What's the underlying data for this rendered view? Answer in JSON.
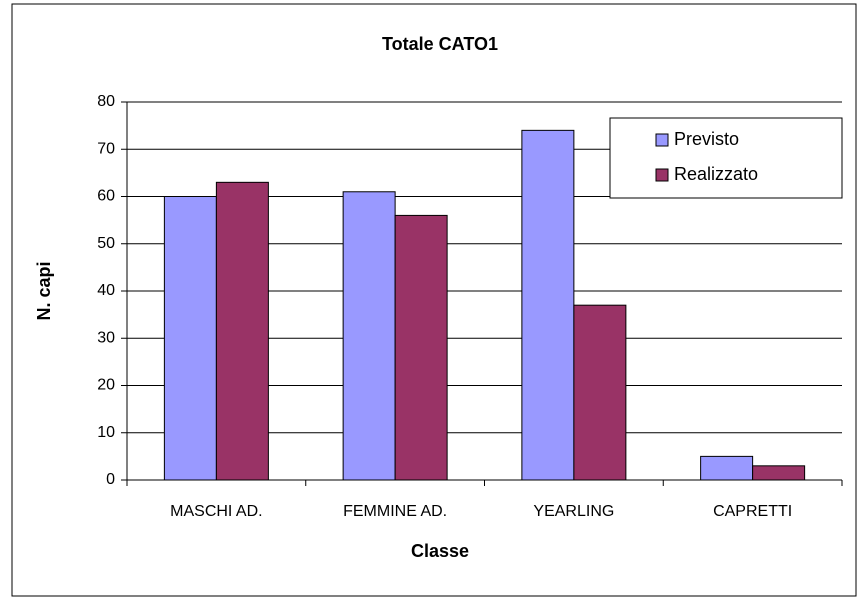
{
  "chart_data": {
    "type": "bar",
    "title": "Totale CATO1",
    "x_label": "Classe",
    "y_label": "N. capi",
    "categories": [
      "MASCHI AD.",
      "FEMMINE AD.",
      "YEARLING",
      "CAPRETTI"
    ],
    "series": [
      {
        "name": "Previsto",
        "color": "#9999ff",
        "values": [
          60,
          61,
          74,
          5
        ]
      },
      {
        "name": "Realizzato",
        "color": "#993366",
        "values": [
          63,
          56,
          37,
          3
        ]
      }
    ],
    "ylim": [
      0,
      80
    ],
    "yticks": [
      0,
      10,
      20,
      30,
      40,
      50,
      60,
      70,
      80
    ],
    "grid": true,
    "legend": "top-right"
  }
}
